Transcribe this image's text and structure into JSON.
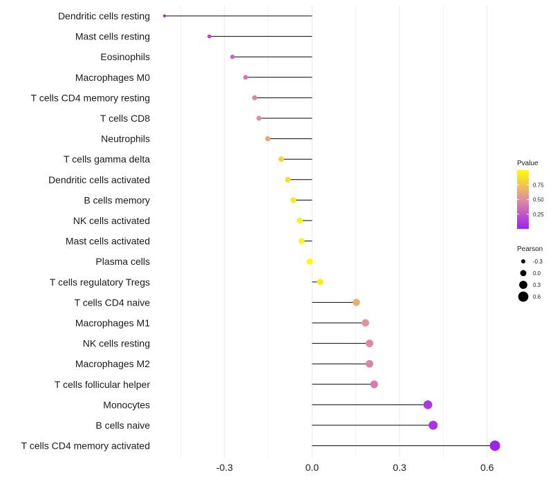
{
  "chart_data": {
    "type": "lollipop",
    "title": "",
    "xlabel": "",
    "ylabel": "",
    "xlim": [
      -0.52,
      0.66
    ],
    "x_ticks": [
      -0.3,
      0.0,
      0.3,
      0.6
    ],
    "x_tick_labels": [
      "-0.3",
      "0.0",
      "0.3",
      "0.6"
    ],
    "grid": true,
    "categories": [
      "Dendritic cells resting",
      "Mast cells resting",
      "Eosinophils",
      "Macrophages M0",
      "T cells CD4 memory resting",
      "T cells CD8",
      "Neutrophils",
      "T cells gamma delta",
      "Dendritic cells activated",
      "B cells memory",
      "NK cells activated",
      "Mast cells activated",
      "Plasma cells",
      "T cells regulatory  Tregs ",
      "T cells CD4 naive",
      "Macrophages M1",
      "NK cells resting",
      "Macrophages M2",
      "T cells follicular helper",
      "Monocytes",
      "B cells naive",
      "T cells CD4 memory activated"
    ],
    "pearson": [
      -0.506,
      -0.352,
      -0.273,
      -0.228,
      -0.197,
      -0.182,
      -0.152,
      -0.106,
      -0.083,
      -0.064,
      -0.042,
      -0.036,
      -0.008,
      0.028,
      0.152,
      0.183,
      0.197,
      0.197,
      0.213,
      0.397,
      0.415,
      0.627
    ],
    "pvalue": [
      0.01,
      0.16,
      0.3,
      0.4,
      0.46,
      0.5,
      0.62,
      0.8,
      0.86,
      0.9,
      0.95,
      0.96,
      0.99,
      0.92,
      0.64,
      0.52,
      0.47,
      0.46,
      0.42,
      0.1,
      0.09,
      0.01
    ],
    "legend": {
      "position": "right",
      "color_title": "Pvalue",
      "color_breaks": [
        0.25,
        0.5,
        0.75
      ],
      "color_break_labels": [
        "0.25",
        "0.50",
        "0.75"
      ],
      "color_low": "#a020f0",
      "color_mid": "#e08ea0",
      "color_high": "#ffff00",
      "size_title": "Pearson",
      "size_breaks": [
        -0.3,
        0.0,
        0.3,
        0.6
      ],
      "size_labels": [
        "-0.3",
        "0.0",
        "0.3",
        "0.6"
      ]
    }
  }
}
